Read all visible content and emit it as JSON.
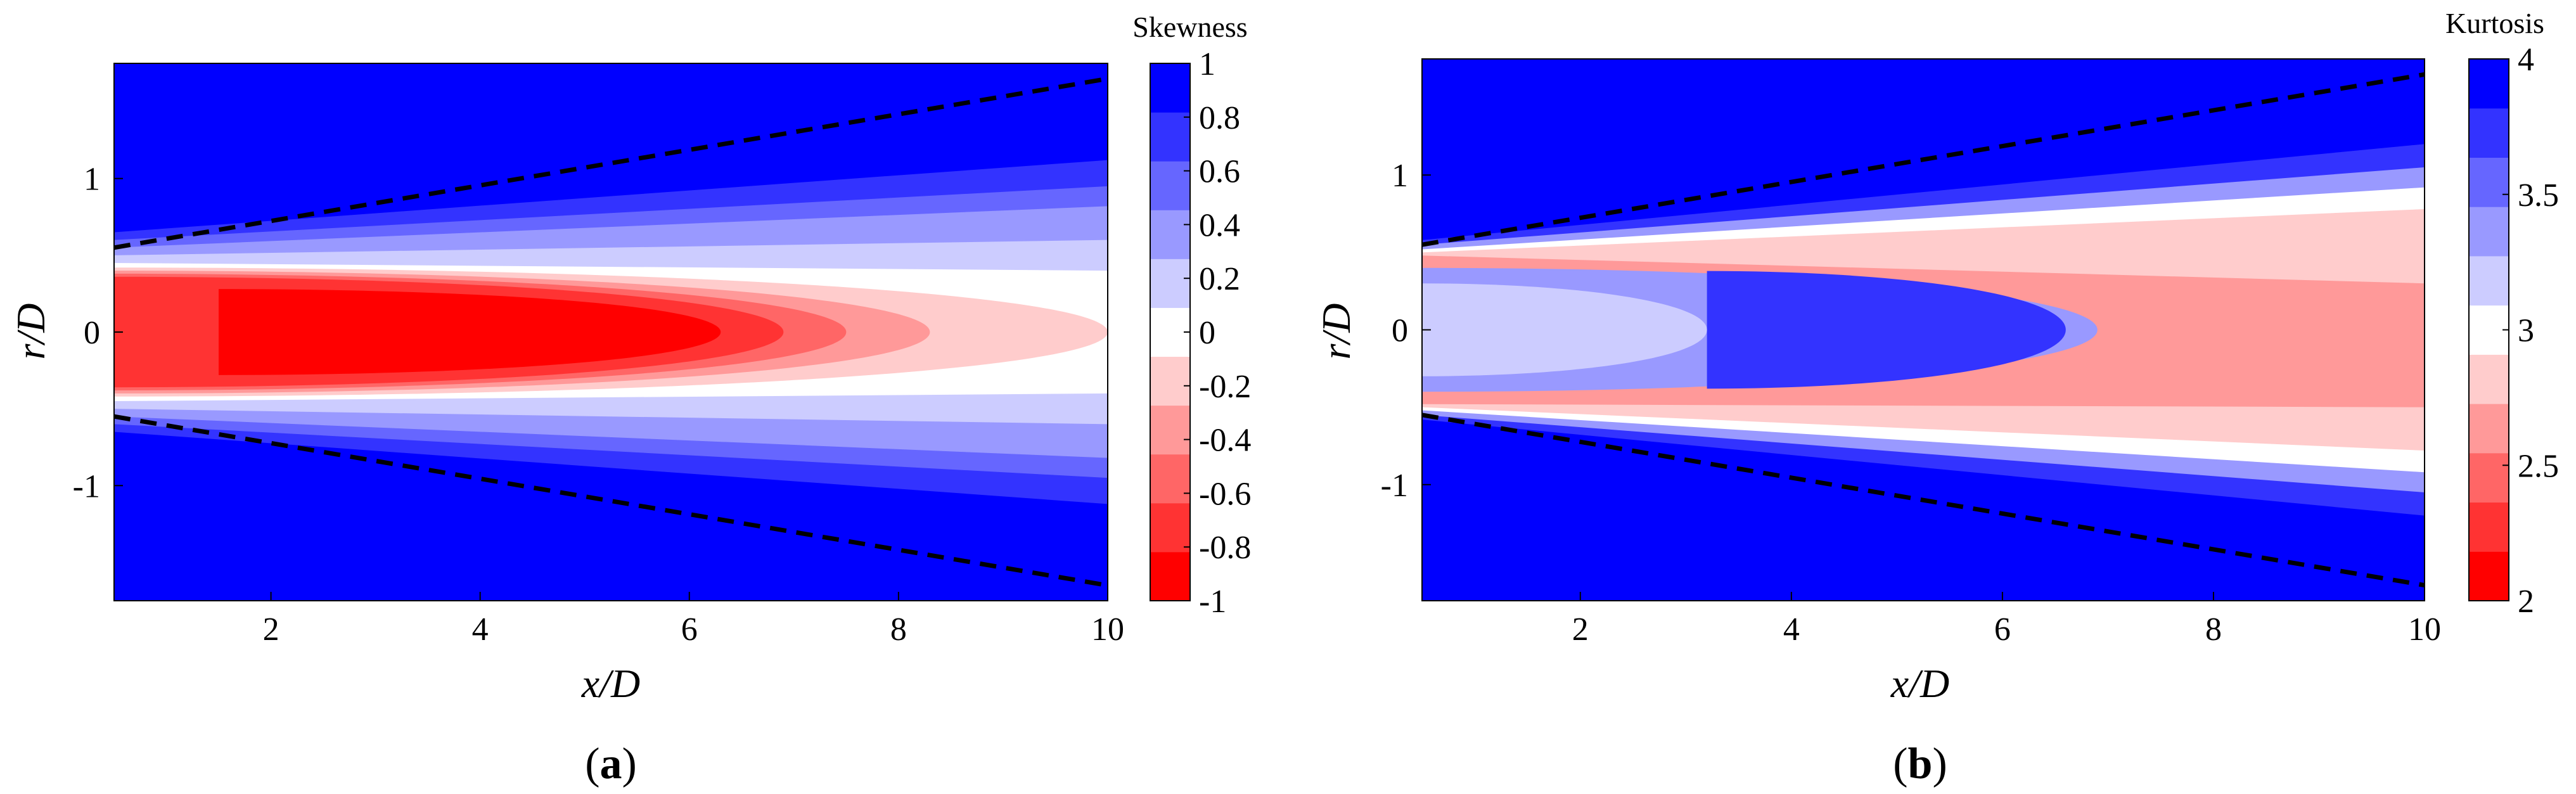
{
  "chart_data": [
    {
      "type": "heatmap",
      "panel": "(a)",
      "panel_letter": "a",
      "xlabel": "x/D",
      "ylabel": "r/D",
      "xlim": [
        0.5,
        10
      ],
      "ylim": [
        -1.75,
        1.75
      ],
      "xticks": [
        2,
        4,
        6,
        8,
        10
      ],
      "xtick_labels": [
        "2",
        "4",
        "6",
        "8",
        "10"
      ],
      "yticks": [
        -1,
        0,
        1
      ],
      "ytick_labels": [
        "-1",
        "0",
        "1"
      ],
      "colorbar": {
        "title": "Skewness",
        "levels": [
          -1,
          -0.8,
          -0.6,
          -0.4,
          -0.2,
          0,
          0.2,
          0.4,
          0.6,
          0.8,
          1
        ],
        "tick_labels": [
          "-1",
          "-0.8",
          "-0.6",
          "-0.4",
          "-0.2",
          "0",
          "0.2",
          "0.4",
          "0.6",
          "0.8",
          "1"
        ],
        "colors": [
          "#ff0000",
          "#ff3333",
          "#ff6666",
          "#ff9999",
          "#ffcccc",
          "#ffffff",
          "#ccccff",
          "#9999ff",
          "#6666ff",
          "#3333ff",
          "#0000ff"
        ]
      },
      "background_color": "#0000ff",
      "contours": [
        {
          "level": 0.8,
          "x": [
            0.5,
            10
          ],
          "upper": [
            0.65,
            1.12
          ],
          "lower": [
            -0.65,
            -1.12
          ]
        },
        {
          "level": 0.6,
          "x": [
            0.5,
            10
          ],
          "upper": [
            0.6,
            0.95
          ],
          "lower": [
            -0.6,
            -0.95
          ]
        },
        {
          "level": 0.4,
          "x": [
            0.5,
            10
          ],
          "upper": [
            0.55,
            0.82
          ],
          "lower": [
            -0.55,
            -0.82
          ]
        },
        {
          "level": 0.2,
          "x": [
            0.5,
            10
          ],
          "upper": [
            0.5,
            0.6
          ],
          "lower": [
            -0.5,
            -0.6
          ]
        },
        {
          "level": 0,
          "x": [
            0.5,
            10
          ],
          "upper": [
            0.45,
            0.4
          ],
          "lower": [
            -0.45,
            -0.4
          ]
        },
        {
          "level": -0.2,
          "x_start": 0.5,
          "x_end": 10,
          "half_width": 0.42
        },
        {
          "level": -0.4,
          "x_start": 0.5,
          "x_end": 8.3,
          "half_width": 0.4
        },
        {
          "level": -0.6,
          "x_start": 0.5,
          "x_end": 7.5,
          "half_width": 0.38
        },
        {
          "level": -0.8,
          "x_start": 0.5,
          "x_end": 6.9,
          "half_width": 0.36
        },
        {
          "level": -1,
          "x_start": 1.5,
          "x_end": 6.3,
          "half_width": 0.28
        }
      ],
      "dashed_lines": [
        {
          "x": [
            0.5,
            10
          ],
          "y": [
            0.55,
            1.65
          ]
        },
        {
          "x": [
            0.5,
            10
          ],
          "y": [
            -0.55,
            -1.65
          ]
        }
      ]
    },
    {
      "type": "heatmap",
      "panel": "(b)",
      "panel_letter": "b",
      "xlabel": "x/D",
      "ylabel": "r/D",
      "xlim": [
        0.5,
        10
      ],
      "ylim": [
        -1.75,
        1.75
      ],
      "xticks": [
        2,
        4,
        6,
        8,
        10
      ],
      "xtick_labels": [
        "2",
        "4",
        "6",
        "8",
        "10"
      ],
      "yticks": [
        -1,
        0,
        1
      ],
      "ytick_labels": [
        "-1",
        "0",
        "1"
      ],
      "colorbar": {
        "title": "Kurtosis",
        "levels": [
          2,
          2.2,
          2.4,
          2.6,
          2.8,
          3,
          3.2,
          3.4,
          3.6,
          3.8,
          4
        ],
        "tick_labels": [
          "2",
          "2.5",
          "3",
          "3.5",
          "4"
        ],
        "tick_values": [
          2,
          2.5,
          3,
          3.5,
          4
        ],
        "colors": [
          "#ff0000",
          "#ff3333",
          "#ff6666",
          "#ff9999",
          "#ffcccc",
          "#ffffff",
          "#ccccff",
          "#9999ff",
          "#6666ff",
          "#3333ff",
          "#0000ff"
        ]
      },
      "background_color": "#0000ff",
      "contours": [
        {
          "level": 3.8,
          "x": [
            0.5,
            10
          ],
          "upper": [
            0.58,
            1.2
          ],
          "lower": [
            -0.58,
            -1.2
          ]
        },
        {
          "level": 3.4,
          "x": [
            0.5,
            10
          ],
          "upper": [
            0.55,
            1.05
          ],
          "lower": [
            -0.55,
            -1.05
          ]
        },
        {
          "level": 3.0,
          "x": [
            0.5,
            10
          ],
          "upper": [
            0.52,
            0.92
          ],
          "lower": [
            -0.52,
            -0.92
          ]
        },
        {
          "level": 2.8,
          "x": [
            0.5,
            10
          ],
          "upper": [
            0.5,
            0.78
          ],
          "lower": [
            -0.5,
            -0.78
          ]
        },
        {
          "level": 2.6,
          "x": [
            0.5,
            10
          ],
          "upper": [
            0.48,
            0.3
          ],
          "lower": [
            -0.48,
            -0.5
          ]
        },
        {
          "level": 3.4,
          "x_start": 0.5,
          "x_end": 6.9,
          "half_width": 0.4
        },
        {
          "level": 3.8,
          "x_start": 3.2,
          "x_end": 6.6,
          "half_width": 0.38
        },
        {
          "level": 3.2,
          "x_start": 0.5,
          "x_end": 3.2,
          "half_width": 0.3
        }
      ],
      "dashed_lines": [
        {
          "x": [
            0.5,
            10
          ],
          "y": [
            0.55,
            1.65
          ]
        },
        {
          "x": [
            0.5,
            10
          ],
          "y": [
            -0.55,
            -1.65
          ]
        }
      ]
    }
  ]
}
